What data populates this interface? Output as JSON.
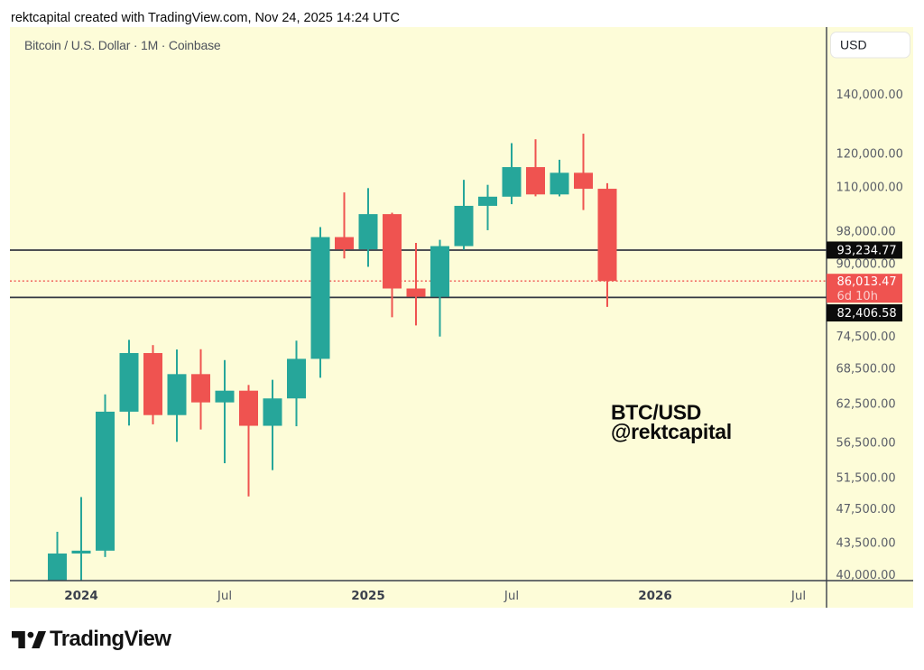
{
  "header": {
    "text": "rektcapital created with TradingView.com, Nov 24, 2025 14:24 UTC"
  },
  "chart": {
    "title": "Bitcoin / U.S. Dollar · 1M · Coinbase",
    "currency_button": "USD",
    "annotation": {
      "line1": "BTC/USD",
      "line2": "@rektcapital"
    }
  },
  "footer": {
    "brand": "TradingView"
  },
  "colors": {
    "background": "#fdfcd8",
    "up": "#26a69a",
    "down": "#ef5350",
    "drawn_line": "#343842",
    "axis_border": "#3a3f4a",
    "dotted_line": "#ef5350",
    "badge_black_bg": "#0b0b0b",
    "badge_red_bg": "#ef5350",
    "badge_text": "#ffffff"
  },
  "chart_data": {
    "type": "candlestick",
    "title": "Bitcoin / U.S. Dollar · 1M · Coinbase",
    "symbol": "BTC/USD",
    "interval": "1M",
    "exchange": "Coinbase",
    "scale": "log",
    "grid": "off",
    "ylim": [
      39383,
      166763
    ],
    "categories": [
      "Dec 2023",
      "Jan 2024",
      "Feb 2024",
      "Mar 2024",
      "Apr 2024",
      "May 2024",
      "Jun 2024",
      "Jul 2024",
      "Aug 2024",
      "Sep 2024",
      "Oct 2024",
      "Nov 2024",
      "Dec 2024",
      "Jan 2025",
      "Feb 2025",
      "Mar 2025",
      "Apr 2025",
      "May 2025",
      "Jun 2025",
      "Jul 2025",
      "Aug 2025",
      "Sep 2025",
      "Oct 2025",
      "Nov 2025"
    ],
    "open": [
      38689,
      42265,
      42582,
      61179,
      71280,
      60636,
      67472,
      62678,
      64619,
      58969,
      63329,
      70215,
      96449,
      93429,
      102405,
      84349,
      82548,
      94207,
      104638,
      107167,
      115758,
      107800,
      114056,
      109400
    ],
    "high": [
      44729,
      48969,
      64000,
      73777,
      72777,
      71946,
      71997,
      69987,
      65593,
      66480,
      73620,
      99000,
      108364,
      109588,
      102780,
      95000,
      95768,
      111980,
      110530,
      123218,
      124474,
      118000,
      126296,
      111000
    ],
    "low": [
      37612,
      38505,
      41884,
      59005,
      59191,
      56555,
      58402,
      53485,
      49050,
      52530,
      58900,
      66835,
      91220,
      89256,
      78258,
      76606,
      74420,
      93300,
      98200,
      105100,
      107270,
      107255,
      103500,
      80400
    ],
    "close": [
      42265,
      42582,
      61179,
      71280,
      60636,
      67472,
      62678,
      64619,
      58969,
      63329,
      70215,
      96449,
      93429,
      102405,
      84349,
      82548,
      94207,
      104638,
      107167,
      115758,
      107800,
      114056,
      109400,
      86013.47
    ],
    "price_lines": [
      {
        "price": 93234.77,
        "label": "93,234.77",
        "style": "solid",
        "badge": "black"
      },
      {
        "price": 86013.47,
        "label": "86,013.47",
        "countdown": "6d 10h",
        "style": "dotted",
        "badge": "red",
        "role": "last-price"
      },
      {
        "price": 82406.58,
        "label": "82,406.58",
        "style": "solid",
        "badge": "black"
      }
    ],
    "price_ticks": [
      {
        "price": 140000,
        "label": "140,000.00"
      },
      {
        "price": 120000,
        "label": "120,000.00"
      },
      {
        "price": 110000,
        "label": "110,000.00"
      },
      {
        "price": 98000,
        "label": "98,000.00"
      },
      {
        "price": 90000,
        "label": "90,000.00"
      },
      {
        "price": 74500,
        "label": "74,500.00"
      },
      {
        "price": 68500,
        "label": "68,500.00"
      },
      {
        "price": 62500,
        "label": "62,500.00"
      },
      {
        "price": 56500,
        "label": "56,500.00"
      },
      {
        "price": 51500,
        "label": "51,500.00"
      },
      {
        "price": 47500,
        "label": "47,500.00"
      },
      {
        "price": 43500,
        "label": "43,500.00"
      },
      {
        "price": 40000,
        "label": "40,000.00"
      }
    ],
    "time_ticks": [
      {
        "label": "2024",
        "index": 1,
        "emphasis": true
      },
      {
        "label": "Jul",
        "index": 7,
        "emphasis": false
      },
      {
        "label": "2025",
        "index": 13,
        "emphasis": true
      },
      {
        "label": "Jul",
        "index": 19,
        "emphasis": false
      },
      {
        "label": "2026",
        "index": 25,
        "emphasis": true
      },
      {
        "label": "Jul",
        "index": 31,
        "emphasis": false
      }
    ],
    "layout": {
      "x_start": 63.5,
      "x_step": 26.5,
      "candle_width": 21,
      "wick_width": 2
    }
  }
}
